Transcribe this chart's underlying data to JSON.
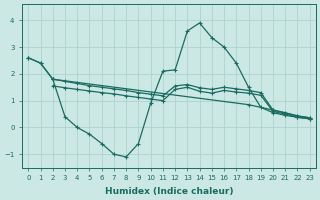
{
  "bg_color": "#cce8e4",
  "grid_color": "#aacfca",
  "line_color": "#1a6b60",
  "markersize": 2.5,
  "linewidth": 0.9,
  "xlabel": "Humidex (Indice chaleur)",
  "xlim": [
    -0.5,
    23.5
  ],
  "ylim": [
    -1.5,
    4.6
  ],
  "yticks": [
    -1,
    0,
    1,
    2,
    3,
    4
  ],
  "xticks": [
    0,
    1,
    2,
    3,
    4,
    5,
    6,
    7,
    8,
    9,
    10,
    11,
    12,
    13,
    14,
    15,
    16,
    17,
    18,
    19,
    20,
    21,
    22,
    23
  ],
  "line1_x": [
    0,
    1,
    2,
    3,
    4,
    5,
    6,
    7,
    8,
    9,
    10,
    11,
    12,
    13,
    14,
    15,
    16,
    17,
    18,
    19,
    20,
    21,
    22,
    23
  ],
  "line1_y": [
    2.6,
    2.4,
    1.8,
    0.4,
    0.0,
    -0.25,
    -0.6,
    -1.0,
    -1.1,
    -0.6,
    0.9,
    2.1,
    2.15,
    3.6,
    3.9,
    3.35,
    3.0,
    2.4,
    1.5,
    0.75,
    0.55,
    0.45,
    0.38,
    0.32
  ],
  "line2_x": [
    0,
    1,
    2,
    18,
    20,
    22,
    23
  ],
  "line2_y": [
    2.6,
    2.4,
    1.8,
    0.85,
    0.65,
    0.43,
    0.36
  ],
  "line3_x": [
    2,
    3,
    4,
    5,
    6,
    7,
    8,
    9,
    10,
    11,
    12,
    13,
    14,
    15,
    16,
    17,
    18,
    19,
    20,
    21,
    22,
    23
  ],
  "line3_y": [
    1.8,
    1.72,
    1.64,
    1.56,
    1.5,
    1.44,
    1.38,
    1.3,
    1.24,
    1.18,
    1.55,
    1.6,
    1.48,
    1.42,
    1.5,
    1.44,
    1.38,
    1.3,
    0.65,
    0.55,
    0.43,
    0.36
  ],
  "line4_x": [
    2,
    3,
    4,
    5,
    6,
    7,
    8,
    9,
    10,
    11,
    12,
    13,
    14,
    15,
    16,
    17,
    18,
    19,
    20,
    21,
    22,
    23
  ],
  "line4_y": [
    1.55,
    1.48,
    1.42,
    1.36,
    1.3,
    1.25,
    1.18,
    1.12,
    1.06,
    1.0,
    1.42,
    1.5,
    1.35,
    1.28,
    1.38,
    1.32,
    1.28,
    1.2,
    0.6,
    0.5,
    0.38,
    0.32
  ]
}
